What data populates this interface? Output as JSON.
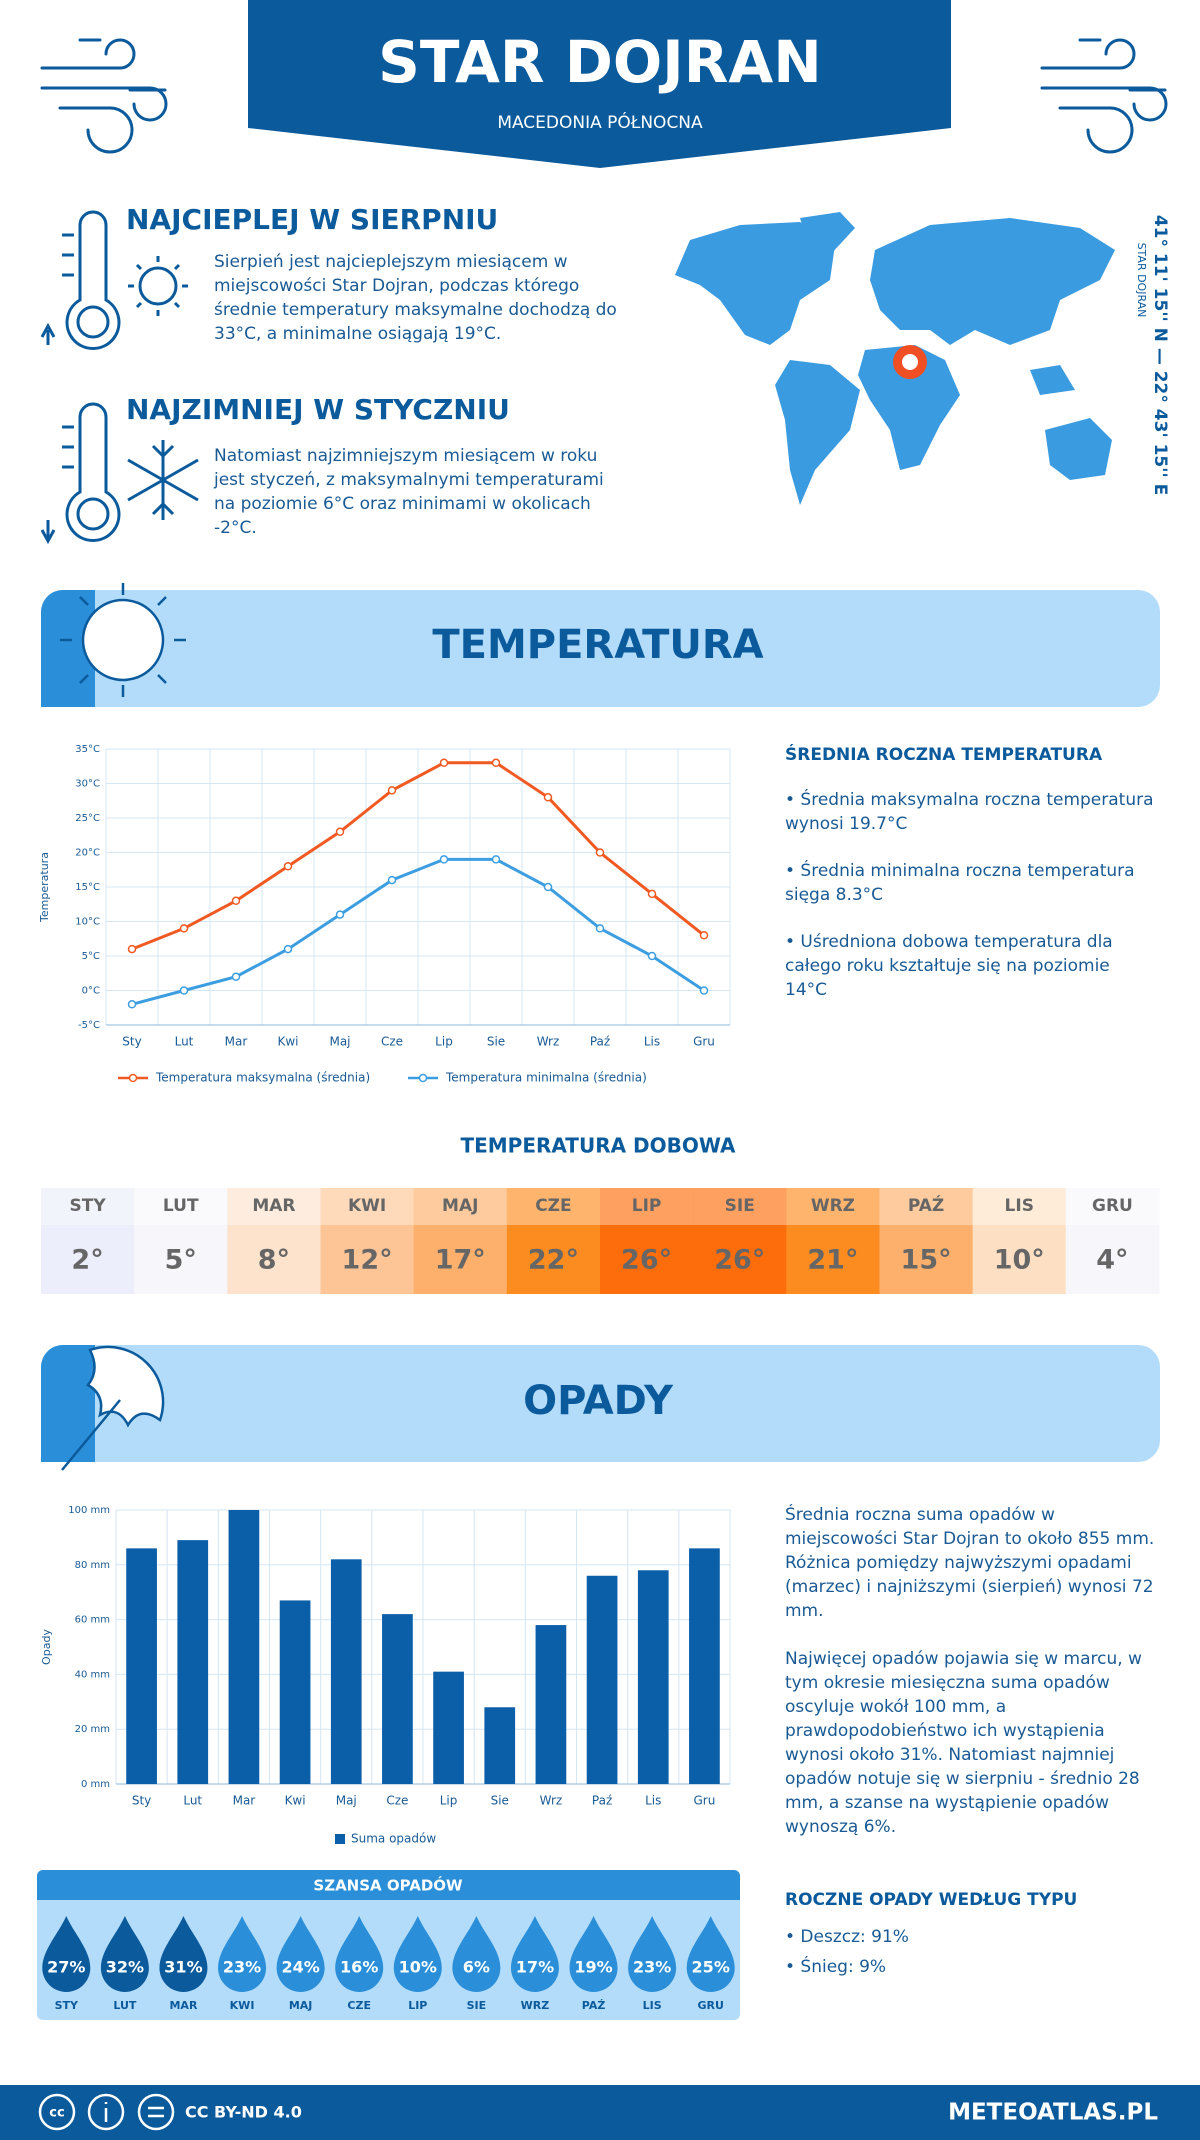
{
  "header": {
    "title": "STAR DOJRAN",
    "subtitle": "MACEDONIA PÓŁNOCNA"
  },
  "warmest": {
    "title": "NAJCIEPLEJ W SIERPNIU",
    "text": "Sierpień jest najcieplejszym miesiącem w miejscowości Star Dojran, podczas którego średnie temperatury maksymalne dochodzą do 33°C, a minimalne osiągają 19°C."
  },
  "coldest": {
    "title": "NAJZIMNIEJ W STYCZNIU",
    "text": "Natomiast najzimniejszym miesiącem w roku jest styczeń, z maksymalnymi temperaturami na poziomie 6°C oraz minimami w okolicach -2°C."
  },
  "location": {
    "coordinates": "41° 11' 15'' N — 22° 43' 15'' E",
    "name": "STAR DOJRAN"
  },
  "temperature_section": {
    "title": "TEMPERATURA",
    "summary_title": "ŚREDNIA ROCZNA TEMPERATURA",
    "bullets": [
      "• Średnia maksymalna roczna temperatura wynosi 19.7°C",
      "• Średnia minimalna roczna temperatura sięga 8.3°C",
      "• Uśredniona dobowa temperatura dla całego roku kształtuje się na poziomie 14°C"
    ]
  },
  "daily_temperature": {
    "title": "TEMPERATURA DOBOWA",
    "months": [
      "STY",
      "LUT",
      "MAR",
      "KWI",
      "MAJ",
      "CZE",
      "LIP",
      "SIE",
      "WRZ",
      "PAŹ",
      "LIS",
      "GRU"
    ],
    "values": [
      "2°",
      "5°",
      "8°",
      "12°",
      "17°",
      "22°",
      "26°",
      "26°",
      "21°",
      "15°",
      "10°",
      "4°"
    ],
    "colors": [
      "#eceefb",
      "#f7f7fb",
      "#fde2cc",
      "#fdc596",
      "#fdb06b",
      "#fd8c20",
      "#fe6d0c",
      "#fe6d0c",
      "#fd8c20",
      "#fdb06b",
      "#fde0c4",
      "#f7f7fb"
    ]
  },
  "precipitation_section": {
    "title": "OPADY",
    "paragraphs": [
      "Średnia roczna suma opadów w miejscowości Star Dojran to około 855 mm. Różnica pomiędzy najwyższymi opadami (marzec) i najniższymi (sierpień) wynosi 72 mm.",
      "Najwięcej opadów pojawia się w marcu, w tym okresie miesięczna suma opadów oscyluje wokół 100 mm, a prawdopodobieństwo ich wystąpienia wynosi około 31%. Natomiast najmniej opadów notuje się w sierpniu - średnio 28 mm, a szanse na wystąpienie opadów wynoszą 6%."
    ],
    "type_title": "ROCZNE OPADY WEDŁUG TYPU",
    "types": [
      "• Deszcz: 91%",
      "• Śnieg: 9%"
    ]
  },
  "precipitation_chance": {
    "title": "SZANSA OPADÓW",
    "months": [
      "STY",
      "LUT",
      "MAR",
      "KWI",
      "MAJ",
      "CZE",
      "LIP",
      "SIE",
      "WRZ",
      "PAŹ",
      "LIS",
      "GRU"
    ],
    "values": [
      "27%",
      "32%",
      "31%",
      "23%",
      "24%",
      "16%",
      "10%",
      "6%",
      "17%",
      "19%",
      "23%",
      "25%"
    ],
    "colors": [
      "#0b5a9c",
      "#0b5a9c",
      "#0b5a9c",
      "#2a8fd8",
      "#2a8fd8",
      "#2a8fd8",
      "#2a8fd8",
      "#2a8fd8",
      "#2a8fd8",
      "#2a8fd8",
      "#2a8fd8",
      "#2a8fd8"
    ]
  },
  "footer": {
    "license": "CC BY-ND 4.0",
    "site": "METEOATLAS.PL"
  },
  "chart_data": [
    {
      "type": "line",
      "y_label": "Temperatura",
      "grid": true,
      "categories": [
        "Sty",
        "Lut",
        "Mar",
        "Kwi",
        "Maj",
        "Cze",
        "Lip",
        "Sie",
        "Wrz",
        "Paź",
        "Lis",
        "Gru"
      ],
      "series": [
        {
          "name": "Temperatura maksymalna (średnia)",
          "color": "#f05a22",
          "values": [
            6,
            9,
            13,
            18,
            23,
            29,
            33,
            33,
            28,
            20,
            14,
            8
          ]
        },
        {
          "name": "Temperatura minimalna (średnia)",
          "color": "#3c9ee0",
          "values": [
            -2,
            0,
            2,
            6,
            11,
            16,
            19,
            19,
            15,
            9,
            5,
            0
          ]
        }
      ],
      "ylim": [
        -5,
        35
      ],
      "yticks": [
        {
          "value": -5,
          "label": "-5°C"
        },
        {
          "value": 0,
          "label": "0°C"
        },
        {
          "value": 5,
          "label": "5°C"
        },
        {
          "value": 10,
          "label": "10°C"
        },
        {
          "value": 15,
          "label": "15°C"
        },
        {
          "value": 20,
          "label": "20°C"
        },
        {
          "value": 25,
          "label": "25°C"
        },
        {
          "value": 30,
          "label": "30°C"
        },
        {
          "value": 35,
          "label": "35°C"
        }
      ]
    },
    {
      "type": "bar",
      "y_label": "Opady",
      "grid": true,
      "categories": [
        "Sty",
        "Lut",
        "Mar",
        "Kwi",
        "Maj",
        "Cze",
        "Lip",
        "Sie",
        "Wrz",
        "Paź",
        "Lis",
        "Gru"
      ],
      "series": [
        {
          "name": "Suma opadów",
          "color": "#0b5ea8",
          "values": [
            86,
            89,
            100,
            67,
            82,
            62,
            41,
            28,
            58,
            76,
            78,
            86
          ]
        }
      ],
      "ylim": [
        0,
        100
      ],
      "yticks": [
        {
          "value": 0,
          "label": "0 mm"
        },
        {
          "value": 20,
          "label": "20 mm"
        },
        {
          "value": 40,
          "label": "40 mm"
        },
        {
          "value": 60,
          "label": "60 mm"
        },
        {
          "value": 80,
          "label": "80 mm"
        },
        {
          "value": 100,
          "label": "100 mm"
        }
      ]
    }
  ]
}
